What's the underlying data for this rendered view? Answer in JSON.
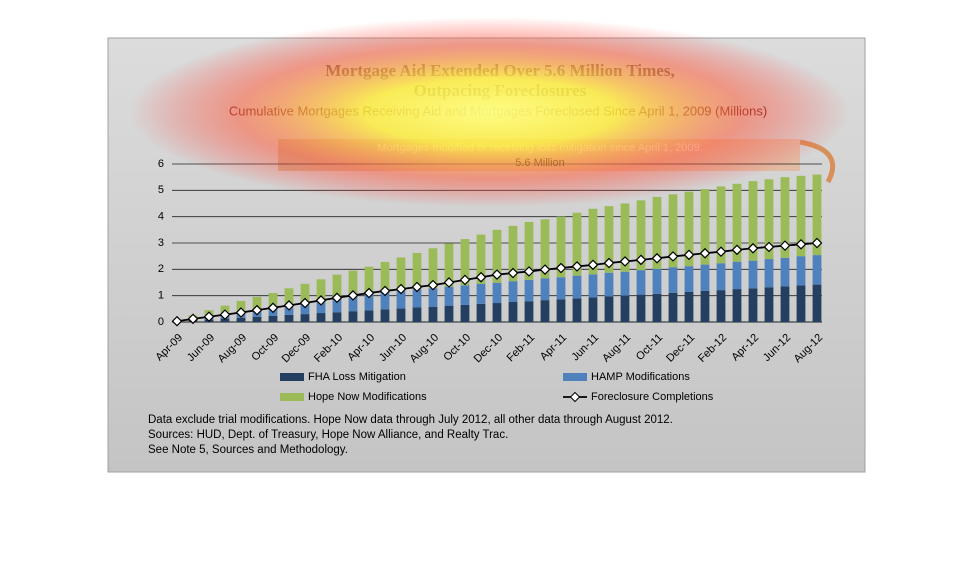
{
  "chart_data": {
    "type": "bar",
    "stacked": true,
    "title": [
      "Mortgage Aid Extended Over 5.6 Million Times,",
      "Outpacing Foreclosures"
    ],
    "subtitle": "Cumulative Mortgages Receiving Aid and Mortgages Foreclosed Since April 1, 2009 (Millions)",
    "annotation": [
      "Mortgages modified or receiving loss mitigation since April 1, 2009:",
      "5.6 Million"
    ],
    "notes": [
      "Data exclude trial modifications. Hope Now data through July 2012, all other data through August 2012.",
      "Sources:  HUD, Dept. of Treasury, Hope Now Alliance, and Realty Trac.",
      "See Note 5, Sources and Methodology."
    ],
    "categories": [
      "Apr-09",
      null,
      "Jun-09",
      null,
      "Aug-09",
      null,
      "Oct-09",
      null,
      "Dec-09",
      null,
      "Feb-10",
      null,
      "Apr-10",
      null,
      "Jun-10",
      null,
      "Aug-10",
      null,
      "Oct-10",
      null,
      "Dec-10",
      null,
      "Feb-11",
      null,
      "Apr-11",
      null,
      "Jun-11",
      null,
      "Aug-11",
      null,
      "Oct-11",
      null,
      "Dec-11",
      null,
      "Feb-12",
      null,
      "Apr-12",
      null,
      "Jun-12",
      null,
      "Aug-12"
    ],
    "series": [
      {
        "name": "FHA Loss Mitigation",
        "color": "#243f60",
        "type": "bar",
        "values": [
          0.02,
          0.06,
          0.09,
          0.13,
          0.16,
          0.2,
          0.23,
          0.27,
          0.3,
          0.34,
          0.37,
          0.41,
          0.44,
          0.48,
          0.51,
          0.55,
          0.58,
          0.62,
          0.65,
          0.69,
          0.72,
          0.76,
          0.79,
          0.83,
          0.86,
          0.9,
          0.93,
          0.97,
          1.0,
          1.04,
          1.07,
          1.11,
          1.14,
          1.18,
          1.21,
          1.25,
          1.28,
          1.32,
          1.35,
          1.39,
          1.42
        ]
      },
      {
        "name": "HAMP Modifications",
        "color": "#4f81bd",
        "type": "bar",
        "values": [
          0,
          0.06,
          0.12,
          0.18,
          0.24,
          0.3,
          0.36,
          0.42,
          0.48,
          0.54,
          0.6,
          0.62,
          0.63,
          0.65,
          0.67,
          0.69,
          0.7,
          0.72,
          0.74,
          0.76,
          0.77,
          0.79,
          0.81,
          0.83,
          0.84,
          0.86,
          0.88,
          0.9,
          0.91,
          0.93,
          0.95,
          0.97,
          0.98,
          1.0,
          1.02,
          1.04,
          1.05,
          1.07,
          1.09,
          1.11,
          1.12
        ]
      },
      {
        "name": "Hope Now Modifications",
        "color": "#9bbb59",
        "type": "bar",
        "values": [
          0.03,
          0.13,
          0.24,
          0.31,
          0.4,
          0.45,
          0.51,
          0.59,
          0.67,
          0.74,
          0.83,
          0.92,
          1.03,
          1.15,
          1.27,
          1.38,
          1.52,
          1.64,
          1.76,
          1.87,
          2.01,
          2.1,
          2.2,
          2.24,
          2.3,
          2.39,
          2.49,
          2.53,
          2.59,
          2.65,
          2.73,
          2.77,
          2.83,
          2.87,
          2.92,
          2.96,
          3.02,
          3.03,
          3.06,
          3.05,
          3.06
        ]
      },
      {
        "name": "Foreclosure Completions",
        "color": "#000000",
        "type": "line",
        "values": [
          0.03,
          0.12,
          0.2,
          0.28,
          0.36,
          0.45,
          0.54,
          0.63,
          0.72,
          0.82,
          0.92,
          1.01,
          1.1,
          1.18,
          1.25,
          1.33,
          1.4,
          1.5,
          1.6,
          1.7,
          1.8,
          1.86,
          1.92,
          1.99,
          2.05,
          2.11,
          2.17,
          2.24,
          2.3,
          2.36,
          2.42,
          2.49,
          2.55,
          2.61,
          2.67,
          2.74,
          2.8,
          2.85,
          2.9,
          2.95,
          3.0
        ]
      }
    ],
    "ylim": [
      0,
      6
    ],
    "yticks": [
      0,
      1,
      2,
      3,
      4,
      5,
      6
    ],
    "grid": true
  }
}
